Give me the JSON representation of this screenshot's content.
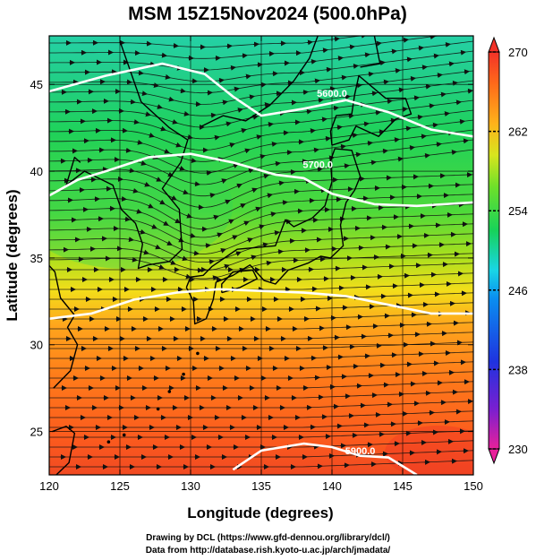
{
  "title": "MSM 15Z15Nov2024 (500.0hPa)",
  "axes": {
    "xlabel": "Longitude (degrees)",
    "ylabel": "Latitude  (degrees)",
    "xlim": [
      120,
      150
    ],
    "ylim": [
      22.5,
      47.8
    ],
    "xticks": [
      "120",
      "125",
      "130",
      "135",
      "140",
      "145",
      "150"
    ],
    "yticks": [
      "25",
      "30",
      "35",
      "40",
      "45"
    ]
  },
  "colorbar": {
    "min": 230,
    "max": 270,
    "labels": [
      "270",
      "262",
      "254",
      "246",
      "238",
      "230"
    ],
    "colors": [
      "#e8209a",
      "#7a1fd0",
      "#1f33e0",
      "#0a8ff0",
      "#19d6e6",
      "#17d25a",
      "#6ee02a",
      "#d7e51e",
      "#ffb21a",
      "#ff6a1a",
      "#f23228"
    ]
  },
  "contours": [
    {
      "label": "5600.0"
    },
    {
      "label": "5700.0"
    },
    {
      "label": "5900.0"
    }
  ],
  "credits": {
    "line1": "Drawing by DCL (https://www.gfd-dennou.org/library/dcl/)",
    "line2": "Data from http://database.rish.kyoto-u.ac.jp/arch/jmadata/"
  }
}
